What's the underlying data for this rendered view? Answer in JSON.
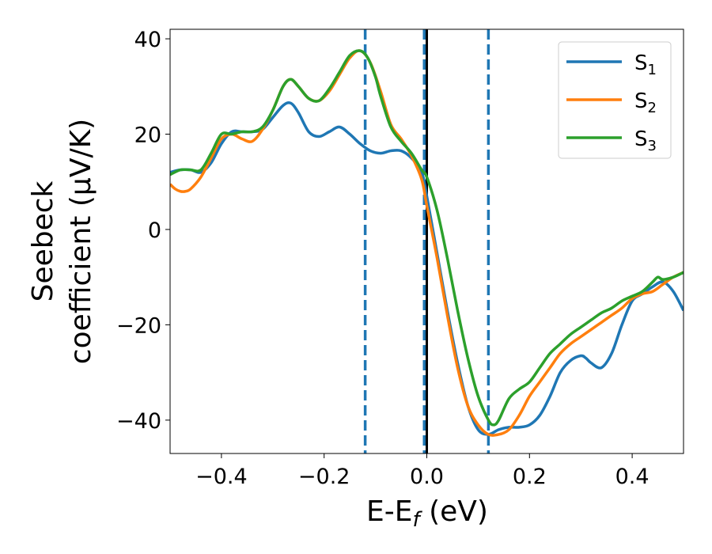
{
  "chart_data": {
    "type": "line",
    "xlabel": "E-E",
    "xlabel_sub": "f",
    "xlabel_unit": " (eV)",
    "ylabel_line1": "Seebeck",
    "ylabel_line2": "coefficient  (μV/K)",
    "xlim": [
      -0.5,
      0.5
    ],
    "ylim": [
      -47,
      42
    ],
    "xticks": [
      -0.4,
      -0.2,
      0.0,
      0.2,
      0.4
    ],
    "xtick_labels": [
      "−0.4",
      "−0.2",
      "0.0",
      "0.2",
      "0.4"
    ],
    "yticks": [
      40,
      20,
      0,
      -20,
      -40
    ],
    "ytick_labels": [
      "40",
      "20",
      "0",
      "−20",
      "−40"
    ],
    "grid": false,
    "legend_position": "top-right",
    "vlines": [
      {
        "x": -0.12,
        "style": "dashed",
        "color": "#1f77b4"
      },
      {
        "x": -0.005,
        "style": "dashed",
        "color": "#1f77b4"
      },
      {
        "x": 0.0,
        "style": "solid",
        "color": "#000000"
      },
      {
        "x": 0.12,
        "style": "dashed",
        "color": "#1f77b4"
      }
    ],
    "series": [
      {
        "name": "S",
        "sub": "1",
        "color": "#1f77b4",
        "x": [
          -0.5,
          -0.48,
          -0.46,
          -0.44,
          -0.42,
          -0.4,
          -0.38,
          -0.36,
          -0.34,
          -0.32,
          -0.3,
          -0.28,
          -0.265,
          -0.25,
          -0.23,
          -0.21,
          -0.19,
          -0.17,
          -0.15,
          -0.13,
          -0.11,
          -0.09,
          -0.07,
          -0.05,
          -0.03,
          -0.01,
          0.0,
          0.02,
          0.04,
          0.06,
          0.08,
          0.1,
          0.12,
          0.14,
          0.16,
          0.18,
          0.2,
          0.22,
          0.24,
          0.26,
          0.28,
          0.3,
          0.31,
          0.32,
          0.34,
          0.36,
          0.38,
          0.4,
          0.42,
          0.44,
          0.46,
          0.48,
          0.5
        ],
        "y": [
          12,
          12.5,
          12.5,
          12,
          14,
          18,
          20.5,
          20.5,
          20.5,
          21,
          23.5,
          26,
          26.5,
          24.5,
          20.5,
          19.5,
          20.5,
          21.5,
          20,
          18,
          16.5,
          16,
          16.5,
          16.5,
          15,
          12,
          7,
          -5,
          -17,
          -28,
          -37,
          -42,
          -43,
          -42,
          -41.5,
          -41.5,
          -41,
          -39,
          -35,
          -30,
          -27.5,
          -26.5,
          -27,
          -28,
          -29,
          -26,
          -20,
          -15,
          -13.5,
          -12,
          -11,
          -13,
          -17
        ]
      },
      {
        "name": "S",
        "sub": "2",
        "color": "#ff7f0e",
        "x": [
          -0.5,
          -0.49,
          -0.48,
          -0.47,
          -0.46,
          -0.44,
          -0.42,
          -0.4,
          -0.38,
          -0.36,
          -0.34,
          -0.32,
          -0.3,
          -0.28,
          -0.265,
          -0.25,
          -0.23,
          -0.21,
          -0.19,
          -0.17,
          -0.15,
          -0.13,
          -0.11,
          -0.09,
          -0.07,
          -0.05,
          -0.03,
          -0.01,
          0.0,
          0.02,
          0.04,
          0.06,
          0.08,
          0.1,
          0.12,
          0.14,
          0.16,
          0.18,
          0.2,
          0.22,
          0.24,
          0.26,
          0.28,
          0.3,
          0.32,
          0.34,
          0.36,
          0.38,
          0.4,
          0.42,
          0.44,
          0.46,
          0.48,
          0.5
        ],
        "y": [
          9.5,
          8.5,
          8,
          8,
          8.5,
          11,
          15,
          19,
          20,
          19,
          18.5,
          21,
          25,
          30,
          31.5,
          30,
          27.5,
          27,
          29,
          32.5,
          36,
          37.5,
          35,
          29,
          22,
          19,
          15.5,
          10.5,
          5,
          -6,
          -18,
          -29,
          -37,
          -41,
          -43,
          -43,
          -42,
          -39,
          -35,
          -32,
          -29,
          -26,
          -24,
          -22.5,
          -21,
          -19.5,
          -18,
          -16.5,
          -14.5,
          -13.5,
          -13,
          -11.5,
          -10,
          -9
        ]
      },
      {
        "name": "S",
        "sub": "3",
        "color": "#2ca02c",
        "x": [
          -0.5,
          -0.48,
          -0.46,
          -0.44,
          -0.42,
          -0.4,
          -0.38,
          -0.36,
          -0.34,
          -0.32,
          -0.3,
          -0.28,
          -0.265,
          -0.25,
          -0.23,
          -0.21,
          -0.19,
          -0.17,
          -0.15,
          -0.13,
          -0.115,
          -0.1,
          -0.09,
          -0.07,
          -0.05,
          -0.03,
          -0.01,
          0.0,
          0.02,
          0.04,
          0.06,
          0.08,
          0.1,
          0.12,
          0.13,
          0.14,
          0.16,
          0.18,
          0.2,
          0.22,
          0.24,
          0.26,
          0.28,
          0.3,
          0.32,
          0.34,
          0.36,
          0.38,
          0.4,
          0.42,
          0.44,
          0.45,
          0.46,
          0.48,
          0.5
        ],
        "y": [
          11.5,
          12.5,
          12.5,
          12.5,
          16,
          20,
          20,
          20.5,
          20.5,
          21.5,
          25,
          30,
          31.5,
          30,
          27.5,
          27,
          29.5,
          33,
          36.5,
          37.5,
          36,
          32,
          28,
          21.5,
          18.5,
          16,
          12.5,
          11,
          4,
          -6,
          -17,
          -27,
          -35,
          -40,
          -41,
          -40,
          -35.5,
          -33.5,
          -32,
          -29,
          -26,
          -24,
          -22,
          -20.5,
          -19,
          -17.5,
          -16.5,
          -15,
          -14,
          -13,
          -11,
          -10,
          -10.5,
          -10,
          -9
        ]
      }
    ]
  }
}
